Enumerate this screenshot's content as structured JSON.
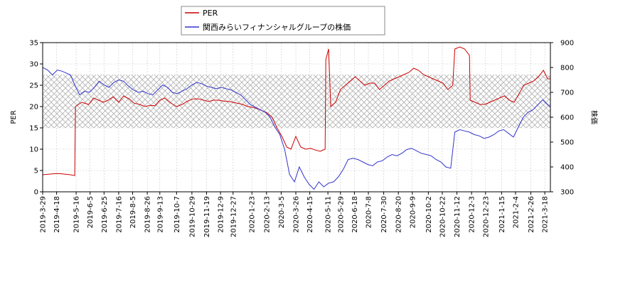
{
  "chart_data": {
    "type": "line",
    "title": "",
    "legend": {
      "placement": "top-center",
      "entries": [
        {
          "label": "PER",
          "color": "#cc0000"
        },
        {
          "label": "関西みらいフィナンシャルグループの株価",
          "color": "#3333cc"
        }
      ]
    },
    "xlabel": "",
    "ylabel_left": "PER",
    "ylabel_right": "株価",
    "ylim_left": [
      0,
      35
    ],
    "ylim_right": [
      300,
      900
    ],
    "yticks_left": [
      "0",
      "5",
      "10",
      "15",
      "20",
      "25",
      "30",
      "35"
    ],
    "yticks_right": [
      "300",
      "400",
      "500",
      "600",
      "700",
      "800",
      "900"
    ],
    "xlim": [
      "2019-03-29",
      "2021-03-26"
    ],
    "xticks": [
      "2019-3-29",
      "2019-4-18",
      "2019-5-16",
      "2019-6-5",
      "2019-6-25",
      "2019-7-16",
      "2019-8-5",
      "2019-8-26",
      "2019-9-13",
      "2019-10-7",
      "2019-10-29",
      "2019-11-19",
      "2019-12-9",
      "2019-12-27",
      "2020-1-23",
      "2020-2-13",
      "2020-3-5",
      "2020-3-26",
      "2020-4-15",
      "2020-5-11",
      "2020-5-29",
      "2020-6-18",
      "2020-7-8",
      "2020-7-30",
      "2020-8-20",
      "2020-9-9",
      "2020-10-2",
      "2020-10-22",
      "2020-11-12",
      "2020-12-3",
      "2020-12-23",
      "2021-1-15",
      "2021-2-4",
      "2021-2-26",
      "2021-3-18"
    ],
    "grid": true,
    "band": {
      "axis": "left",
      "from": 15,
      "to": 27.5,
      "pattern": "crosshatch"
    },
    "series": [
      {
        "name": "PER",
        "axis": "left",
        "color": "#cc0000",
        "points": [
          [
            "2019-03-29",
            4.0
          ],
          [
            "2019-04-05",
            4.1
          ],
          [
            "2019-04-12",
            4.2
          ],
          [
            "2019-04-19",
            4.3
          ],
          [
            "2019-04-26",
            4.2
          ],
          [
            "2019-05-08",
            4.0
          ],
          [
            "2019-05-14",
            3.8
          ],
          [
            "2019-05-15",
            20.0
          ],
          [
            "2019-05-24",
            21.0
          ],
          [
            "2019-06-03",
            20.5
          ],
          [
            "2019-06-10",
            22.0
          ],
          [
            "2019-06-17",
            21.5
          ],
          [
            "2019-06-24",
            21.0
          ],
          [
            "2019-07-01",
            21.5
          ],
          [
            "2019-07-08",
            22.3
          ],
          [
            "2019-07-16",
            21.0
          ],
          [
            "2019-07-23",
            22.5
          ],
          [
            "2019-07-31",
            21.8
          ],
          [
            "2019-08-07",
            20.8
          ],
          [
            "2019-08-15",
            20.5
          ],
          [
            "2019-08-23",
            20.0
          ],
          [
            "2019-08-30",
            20.3
          ],
          [
            "2019-09-06",
            20.2
          ],
          [
            "2019-09-13",
            21.5
          ],
          [
            "2019-09-20",
            22.0
          ],
          [
            "2019-09-27",
            21.0
          ],
          [
            "2019-10-07",
            20.0
          ],
          [
            "2019-10-15",
            20.5
          ],
          [
            "2019-10-23",
            21.3
          ],
          [
            "2019-10-31",
            21.8
          ],
          [
            "2019-11-08",
            21.8
          ],
          [
            "2019-11-15",
            21.5
          ],
          [
            "2019-11-22",
            21.2
          ],
          [
            "2019-11-29",
            21.5
          ],
          [
            "2019-12-06",
            21.5
          ],
          [
            "2019-12-13",
            21.3
          ],
          [
            "2019-12-20",
            21.2
          ],
          [
            "2019-12-27",
            21.0
          ],
          [
            "2020-01-10",
            20.5
          ],
          [
            "2020-01-17",
            20.0
          ],
          [
            "2020-01-24",
            19.8
          ],
          [
            "2020-01-31",
            19.5
          ],
          [
            "2020-02-07",
            19.0
          ],
          [
            "2020-02-14",
            18.5
          ],
          [
            "2020-02-21",
            17.5
          ],
          [
            "2020-02-28",
            15.0
          ],
          [
            "2020-03-06",
            13.0
          ],
          [
            "2020-03-13",
            10.5
          ],
          [
            "2020-03-19",
            10.0
          ],
          [
            "2020-03-26",
            13.0
          ],
          [
            "2020-04-02",
            10.5
          ],
          [
            "2020-04-09",
            10.0
          ],
          [
            "2020-04-16",
            10.2
          ],
          [
            "2020-04-23",
            9.8
          ],
          [
            "2020-04-30",
            9.5
          ],
          [
            "2020-05-07",
            10.0
          ],
          [
            "2020-05-08",
            31.0
          ],
          [
            "2020-05-12",
            33.5
          ],
          [
            "2020-05-15",
            20.0
          ],
          [
            "2020-05-22",
            21.0
          ],
          [
            "2020-05-29",
            24.0
          ],
          [
            "2020-06-05",
            25.0
          ],
          [
            "2020-06-12",
            26.0
          ],
          [
            "2020-06-19",
            27.0
          ],
          [
            "2020-06-26",
            26.0
          ],
          [
            "2020-07-03",
            25.0
          ],
          [
            "2020-07-10",
            25.5
          ],
          [
            "2020-07-17",
            25.5
          ],
          [
            "2020-07-24",
            24.0
          ],
          [
            "2020-07-31",
            25.0
          ],
          [
            "2020-08-07",
            26.0
          ],
          [
            "2020-08-14",
            26.5
          ],
          [
            "2020-08-21",
            27.0
          ],
          [
            "2020-08-28",
            27.5
          ],
          [
            "2020-09-04",
            28.0
          ],
          [
            "2020-09-11",
            29.0
          ],
          [
            "2020-09-18",
            28.5
          ],
          [
            "2020-09-25",
            27.5
          ],
          [
            "2020-10-02",
            27.0
          ],
          [
            "2020-10-09",
            26.5
          ],
          [
            "2020-10-16",
            26.0
          ],
          [
            "2020-10-23",
            25.5
          ],
          [
            "2020-10-30",
            24.0
          ],
          [
            "2020-11-06",
            25.0
          ],
          [
            "2020-11-09",
            33.5
          ],
          [
            "2020-11-16",
            34.0
          ],
          [
            "2020-11-23",
            33.5
          ],
          [
            "2020-11-30",
            32.0
          ],
          [
            "2020-12-01",
            21.5
          ],
          [
            "2020-12-08",
            21.0
          ],
          [
            "2020-12-15",
            20.5
          ],
          [
            "2020-12-22",
            20.5
          ],
          [
            "2020-12-29",
            21.0
          ],
          [
            "2021-01-05",
            21.5
          ],
          [
            "2021-01-12",
            22.0
          ],
          [
            "2021-01-19",
            22.5
          ],
          [
            "2021-01-26",
            21.5
          ],
          [
            "2021-02-02",
            21.0
          ],
          [
            "2021-02-09",
            23.0
          ],
          [
            "2021-02-16",
            25.0
          ],
          [
            "2021-02-23",
            25.5
          ],
          [
            "2021-03-02",
            26.0
          ],
          [
            "2021-03-09",
            27.0
          ],
          [
            "2021-03-16",
            28.5
          ],
          [
            "2021-03-22",
            26.5
          ],
          [
            "2021-03-26",
            26.5
          ]
        ]
      },
      {
        "name": "関西みらいフィナンシャルグループの株価",
        "axis": "right",
        "color": "#3333cc",
        "points": [
          [
            "2019-03-29",
            800
          ],
          [
            "2019-04-05",
            790
          ],
          [
            "2019-04-12",
            770
          ],
          [
            "2019-04-19",
            790
          ],
          [
            "2019-04-26",
            785
          ],
          [
            "2019-05-08",
            770
          ],
          [
            "2019-05-14",
            730
          ],
          [
            "2019-05-21",
            690
          ],
          [
            "2019-05-28",
            705
          ],
          [
            "2019-06-04",
            700
          ],
          [
            "2019-06-11",
            720
          ],
          [
            "2019-06-18",
            745
          ],
          [
            "2019-06-25",
            730
          ],
          [
            "2019-07-02",
            720
          ],
          [
            "2019-07-09",
            740
          ],
          [
            "2019-07-16",
            750
          ],
          [
            "2019-07-23",
            745
          ],
          [
            "2019-07-30",
            725
          ],
          [
            "2019-08-06",
            710
          ],
          [
            "2019-08-13",
            700
          ],
          [
            "2019-08-20",
            705
          ],
          [
            "2019-08-27",
            695
          ],
          [
            "2019-09-03",
            690
          ],
          [
            "2019-09-10",
            710
          ],
          [
            "2019-09-17",
            730
          ],
          [
            "2019-09-24",
            720
          ],
          [
            "2019-10-01",
            700
          ],
          [
            "2019-10-08",
            695
          ],
          [
            "2019-10-15",
            705
          ],
          [
            "2019-10-22",
            715
          ],
          [
            "2019-10-29",
            730
          ],
          [
            "2019-11-05",
            740
          ],
          [
            "2019-11-12",
            735
          ],
          [
            "2019-11-19",
            725
          ],
          [
            "2019-11-26",
            720
          ],
          [
            "2019-12-03",
            715
          ],
          [
            "2019-12-10",
            720
          ],
          [
            "2019-12-17",
            715
          ],
          [
            "2019-12-24",
            710
          ],
          [
            "2020-01-07",
            690
          ],
          [
            "2020-01-14",
            670
          ],
          [
            "2020-01-21",
            650
          ],
          [
            "2020-01-28",
            640
          ],
          [
            "2020-02-04",
            630
          ],
          [
            "2020-02-11",
            620
          ],
          [
            "2020-02-18",
            600
          ],
          [
            "2020-02-25",
            560
          ],
          [
            "2020-03-03",
            530
          ],
          [
            "2020-03-10",
            470
          ],
          [
            "2020-03-17",
            370
          ],
          [
            "2020-03-24",
            340
          ],
          [
            "2020-03-31",
            400
          ],
          [
            "2020-04-07",
            360
          ],
          [
            "2020-04-14",
            330
          ],
          [
            "2020-04-21",
            310
          ],
          [
            "2020-04-28",
            340
          ],
          [
            "2020-05-05",
            320
          ],
          [
            "2020-05-12",
            335
          ],
          [
            "2020-05-19",
            340
          ],
          [
            "2020-05-26",
            360
          ],
          [
            "2020-06-02",
            390
          ],
          [
            "2020-06-09",
            430
          ],
          [
            "2020-06-16",
            435
          ],
          [
            "2020-06-23",
            430
          ],
          [
            "2020-06-30",
            420
          ],
          [
            "2020-07-07",
            410
          ],
          [
            "2020-07-14",
            405
          ],
          [
            "2020-07-21",
            420
          ],
          [
            "2020-07-28",
            425
          ],
          [
            "2020-08-04",
            440
          ],
          [
            "2020-08-11",
            450
          ],
          [
            "2020-08-18",
            445
          ],
          [
            "2020-08-25",
            455
          ],
          [
            "2020-09-01",
            470
          ],
          [
            "2020-09-08",
            475
          ],
          [
            "2020-09-15",
            465
          ],
          [
            "2020-09-22",
            455
          ],
          [
            "2020-09-29",
            450
          ],
          [
            "2020-10-06",
            445
          ],
          [
            "2020-10-13",
            430
          ],
          [
            "2020-10-20",
            420
          ],
          [
            "2020-10-27",
            400
          ],
          [
            "2020-11-03",
            395
          ],
          [
            "2020-11-09",
            540
          ],
          [
            "2020-11-16",
            550
          ],
          [
            "2020-11-23",
            545
          ],
          [
            "2020-11-30",
            540
          ],
          [
            "2020-12-07",
            530
          ],
          [
            "2020-12-14",
            525
          ],
          [
            "2020-12-21",
            515
          ],
          [
            "2020-12-28",
            520
          ],
          [
            "2021-01-04",
            530
          ],
          [
            "2021-01-11",
            545
          ],
          [
            "2021-01-18",
            550
          ],
          [
            "2021-01-25",
            535
          ],
          [
            "2021-02-01",
            520
          ],
          [
            "2021-02-08",
            560
          ],
          [
            "2021-02-15",
            600
          ],
          [
            "2021-02-22",
            620
          ],
          [
            "2021-03-01",
            630
          ],
          [
            "2021-03-08",
            650
          ],
          [
            "2021-03-15",
            670
          ],
          [
            "2021-03-22",
            650
          ],
          [
            "2021-03-26",
            640
          ]
        ]
      }
    ]
  }
}
